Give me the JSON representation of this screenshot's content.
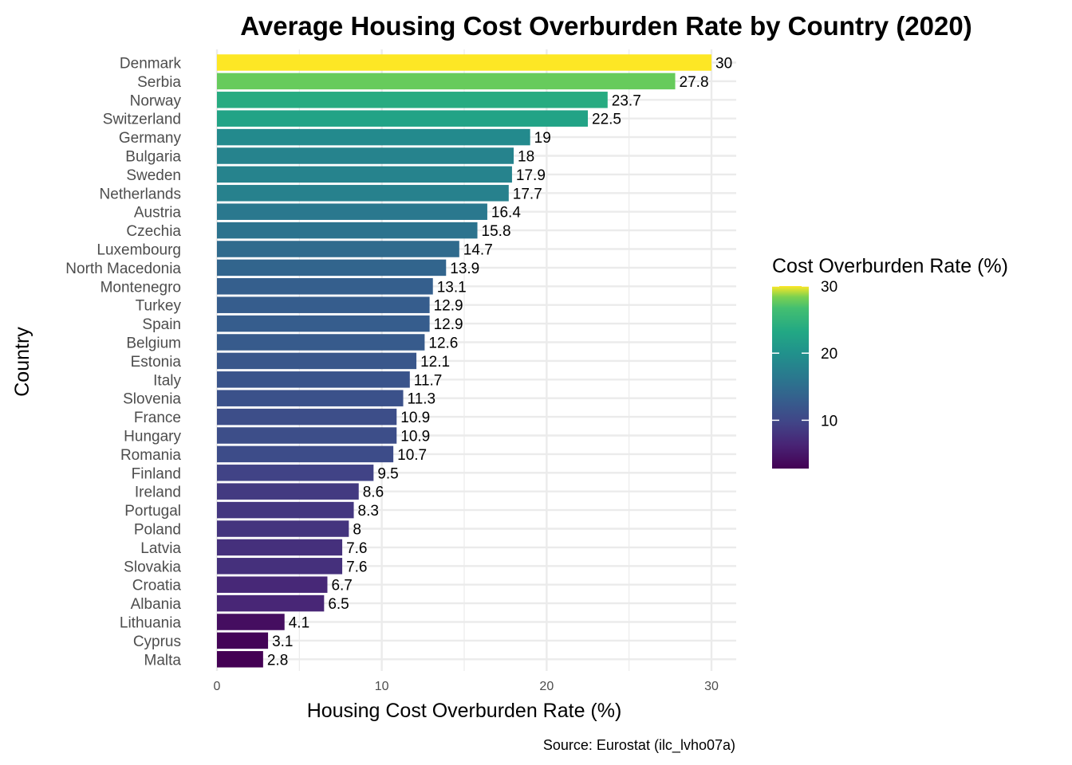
{
  "chart_data": {
    "type": "bar",
    "orientation": "horizontal",
    "title": "Average Housing Cost Overburden Rate by Country (2020)",
    "xlabel": "Housing Cost Overburden Rate (%)",
    "ylabel": "Country",
    "caption": "Source: Eurostat (ilc_lvho07a)",
    "xlim": [
      0,
      30
    ],
    "x_ticks": [
      0,
      10,
      20,
      30
    ],
    "grid": true,
    "categories": [
      "Denmark",
      "Serbia",
      "Norway",
      "Switzerland",
      "Germany",
      "Bulgaria",
      "Sweden",
      "Netherlands",
      "Austria",
      "Czechia",
      "Luxembourg",
      "North Macedonia",
      "Montenegro",
      "Turkey",
      "Spain",
      "Belgium",
      "Estonia",
      "Italy",
      "Slovenia",
      "France",
      "Hungary",
      "Romania",
      "Finland",
      "Ireland",
      "Portugal",
      "Poland",
      "Latvia",
      "Slovakia",
      "Croatia",
      "Albania",
      "Lithuania",
      "Cyprus",
      "Malta"
    ],
    "values": [
      30,
      27.8,
      23.7,
      22.5,
      19,
      18,
      17.9,
      17.7,
      16.4,
      15.8,
      14.7,
      13.9,
      13.1,
      12.9,
      12.9,
      12.6,
      12.1,
      11.7,
      11.3,
      10.9,
      10.9,
      10.7,
      9.5,
      8.6,
      8.3,
      8,
      7.6,
      7.6,
      6.7,
      6.5,
      4.1,
      3.1,
      2.8
    ],
    "value_labels": [
      "30",
      "27.8",
      "23.7",
      "22.5",
      "19",
      "18",
      "17.9",
      "17.7",
      "16.4",
      "15.8",
      "14.7",
      "13.9",
      "13.1",
      "12.9",
      "12.9",
      "12.6",
      "12.1",
      "11.7",
      "11.3",
      "10.9",
      "10.9",
      "10.7",
      "9.5",
      "8.6",
      "8.3",
      "8",
      "7.6",
      "7.6",
      "6.7",
      "6.5",
      "4.1",
      "3.1",
      "2.8"
    ],
    "legend": {
      "title": "Cost Overburden Rate (%)",
      "type": "colorbar",
      "placement": "right",
      "ticks": [
        10,
        20,
        30
      ],
      "range": [
        2.8,
        30
      ],
      "palette": "viridis"
    }
  }
}
